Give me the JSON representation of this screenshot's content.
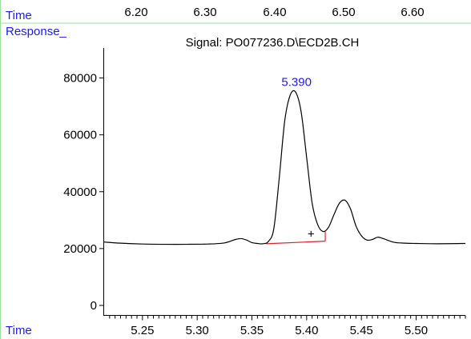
{
  "header": {
    "time_label": "Time",
    "response_label": "Response_",
    "bottom_time_label": "Time",
    "top_axis_ticks": [
      "6.20",
      "6.30",
      "6.40",
      "6.50",
      "6.60"
    ]
  },
  "chart_data": {
    "type": "line",
    "title": "Signal: PO077236.D\\ECD2B.CH",
    "xlabel": "Time",
    "ylabel": "Response_",
    "xlim": [
      5.215,
      5.545
    ],
    "ylim": [
      0,
      90000
    ],
    "x_ticks": [
      5.25,
      5.3,
      5.35,
      5.4,
      5.45,
      5.5
    ],
    "x_tick_labels": [
      "5.25",
      "5.30",
      "5.35",
      "5.40",
      "5.45",
      "5.50"
    ],
    "y_ticks": [
      0,
      20000,
      40000,
      60000,
      80000
    ],
    "y_tick_labels": [
      "0",
      "20000",
      "40000",
      "60000",
      "80000"
    ],
    "series": [
      {
        "color": "#000000",
        "x": [
          5.215,
          5.23,
          5.25,
          5.27,
          5.29,
          5.31,
          5.325,
          5.335,
          5.34,
          5.345,
          5.35,
          5.355,
          5.36,
          5.365,
          5.37,
          5.375,
          5.38,
          5.385,
          5.39,
          5.395,
          5.4,
          5.405,
          5.41,
          5.415,
          5.42,
          5.425,
          5.43,
          5.435,
          5.44,
          5.445,
          5.45,
          5.455,
          5.46,
          5.465,
          5.47,
          5.48,
          5.49,
          5.5,
          5.52,
          5.545
        ],
        "y": [
          22300,
          21900,
          21600,
          21500,
          21500,
          21600,
          22000,
          23200,
          23500,
          23000,
          22100,
          21800,
          21700,
          22500,
          27000,
          45000,
          65000,
          74000,
          75000,
          68000,
          52000,
          36000,
          28500,
          26000,
          27500,
          32000,
          36000,
          37000,
          34000,
          28000,
          24500,
          23000,
          23200,
          24000,
          23500,
          22200,
          21900,
          21800,
          21700,
          21800
        ]
      }
    ],
    "baseline": {
      "color": "#dd2222",
      "x": [
        5.363,
        5.417
      ],
      "y": [
        21700,
        22600
      ]
    },
    "baseline_end_tick": {
      "x": 5.417,
      "y_range": [
        22600,
        26000
      ]
    },
    "peak_label": {
      "text": "5.390",
      "x": 5.39,
      "y": 75000,
      "color": "#1a1aff"
    },
    "marker": {
      "text": "+",
      "x": 5.404,
      "y": 25500
    }
  }
}
